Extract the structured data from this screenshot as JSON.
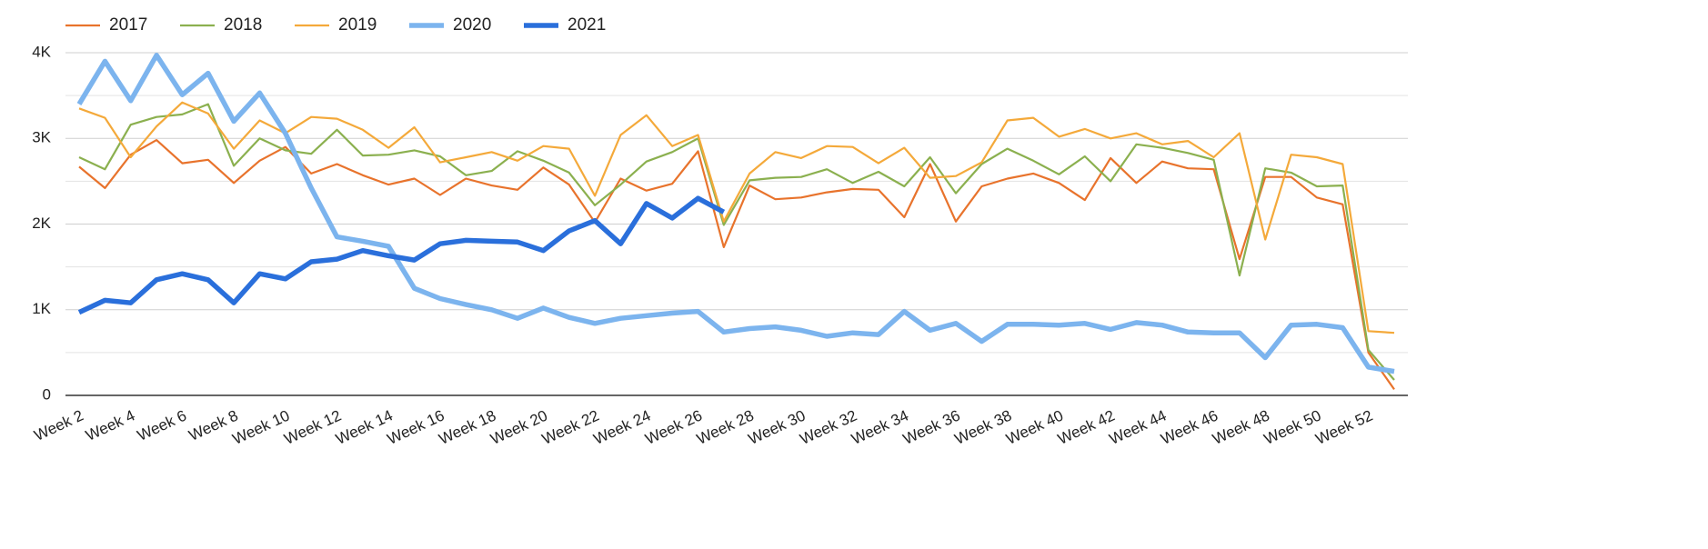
{
  "chart_data": {
    "type": "line",
    "categories": [
      "Week 2",
      null,
      "Week 4",
      null,
      "Week 6",
      null,
      "Week 8",
      null,
      "Week 10",
      null,
      "Week 12",
      null,
      "Week 14",
      null,
      "Week 16",
      null,
      "Week 18",
      null,
      "Week 20",
      null,
      "Week 22",
      null,
      "Week 24",
      null,
      "Week 26",
      null,
      "Week 28",
      null,
      "Week 30",
      null,
      "Week 32",
      null,
      "Week 34",
      null,
      "Week 36",
      null,
      "Week 38",
      null,
      "Week 40",
      null,
      "Week 42",
      null,
      "Week 44",
      null,
      "Week 46",
      null,
      "Week 48",
      null,
      "Week 50",
      null,
      "Week 52",
      null
    ],
    "series": [
      {
        "name": "2017",
        "color": "#e8732c",
        "width": 2.2,
        "values": [
          2670,
          2420,
          2810,
          2980,
          2710,
          2750,
          2480,
          2740,
          2900,
          2590,
          2700,
          2570,
          2460,
          2530,
          2340,
          2530,
          2450,
          2400,
          2660,
          2460,
          2020,
          2530,
          2390,
          2470,
          2850,
          1730,
          2450,
          2290,
          2310,
          2370,
          2410,
          2400,
          2080,
          2700,
          2030,
          2440,
          2530,
          2590,
          2480,
          2280,
          2770,
          2480,
          2730,
          2650,
          2640,
          1590,
          2550,
          2550,
          2310,
          2230,
          500,
          70
        ]
      },
      {
        "name": "2018",
        "color": "#8bb04f",
        "width": 2.2,
        "values": [
          2780,
          2640,
          3160,
          3250,
          3280,
          3400,
          2680,
          3000,
          2860,
          2820,
          3100,
          2800,
          2810,
          2860,
          2790,
          2570,
          2620,
          2850,
          2740,
          2600,
          2220,
          2460,
          2730,
          2840,
          3000,
          1990,
          2510,
          2540,
          2550,
          2640,
          2480,
          2610,
          2440,
          2780,
          2360,
          2700,
          2880,
          2740,
          2580,
          2790,
          2500,
          2930,
          2890,
          2830,
          2750,
          1400,
          2650,
          2600,
          2440,
          2450,
          530,
          180
        ]
      },
      {
        "name": "2019",
        "color": "#f4a93a",
        "width": 2.2,
        "values": [
          3350,
          3240,
          2780,
          3140,
          3420,
          3290,
          2880,
          3210,
          3060,
          3250,
          3230,
          3100,
          2890,
          3130,
          2720,
          2780,
          2840,
          2740,
          2910,
          2880,
          2330,
          3040,
          3270,
          2910,
          3040,
          2030,
          2590,
          2840,
          2770,
          2910,
          2900,
          2710,
          2890,
          2540,
          2560,
          2720,
          3210,
          3240,
          3020,
          3110,
          3000,
          3060,
          2930,
          2970,
          2780,
          3060,
          1820,
          2810,
          2780,
          2700,
          750,
          730
        ]
      },
      {
        "name": "2020",
        "color": "#7cb4ee",
        "width": 5.5,
        "values": [
          3400,
          3900,
          3440,
          3970,
          3510,
          3760,
          3200,
          3530,
          3060,
          2420,
          1850,
          1800,
          1740,
          1250,
          1130,
          1060,
          1000,
          900,
          1020,
          910,
          840,
          900,
          930,
          960,
          980,
          740,
          780,
          800,
          760,
          690,
          730,
          710,
          980,
          760,
          840,
          630,
          830,
          830,
          820,
          840,
          770,
          850,
          820,
          740,
          730,
          730,
          440,
          820,
          830,
          790,
          330,
          280
        ]
      },
      {
        "name": "2021",
        "color": "#2a6fdb",
        "width": 5.5,
        "values": [
          970,
          1110,
          1080,
          1350,
          1420,
          1350,
          1080,
          1420,
          1360,
          1560,
          1590,
          1690,
          1630,
          1580,
          1770,
          1810,
          1800,
          1790,
          1690,
          1920,
          2040,
          1770,
          2240,
          2070,
          2300,
          2140,
          null,
          null,
          null,
          null,
          null,
          null,
          null,
          null,
          null,
          null,
          null,
          null,
          null,
          null,
          null,
          null,
          null,
          null,
          null,
          null,
          null,
          null,
          null,
          null,
          null,
          null
        ]
      }
    ],
    "ylim": [
      0,
      4000
    ],
    "yticks": [
      0,
      {
        "value": 1000,
        "label": "1K"
      },
      {
        "value": 2000,
        "label": "2K"
      },
      {
        "value": 3000,
        "label": "3K"
      },
      {
        "value": 4000,
        "label": "4K"
      }
    ],
    "minor_yticks": [
      500,
      1500,
      2500,
      3500
    ],
    "grid": true,
    "legend": "top-left"
  }
}
